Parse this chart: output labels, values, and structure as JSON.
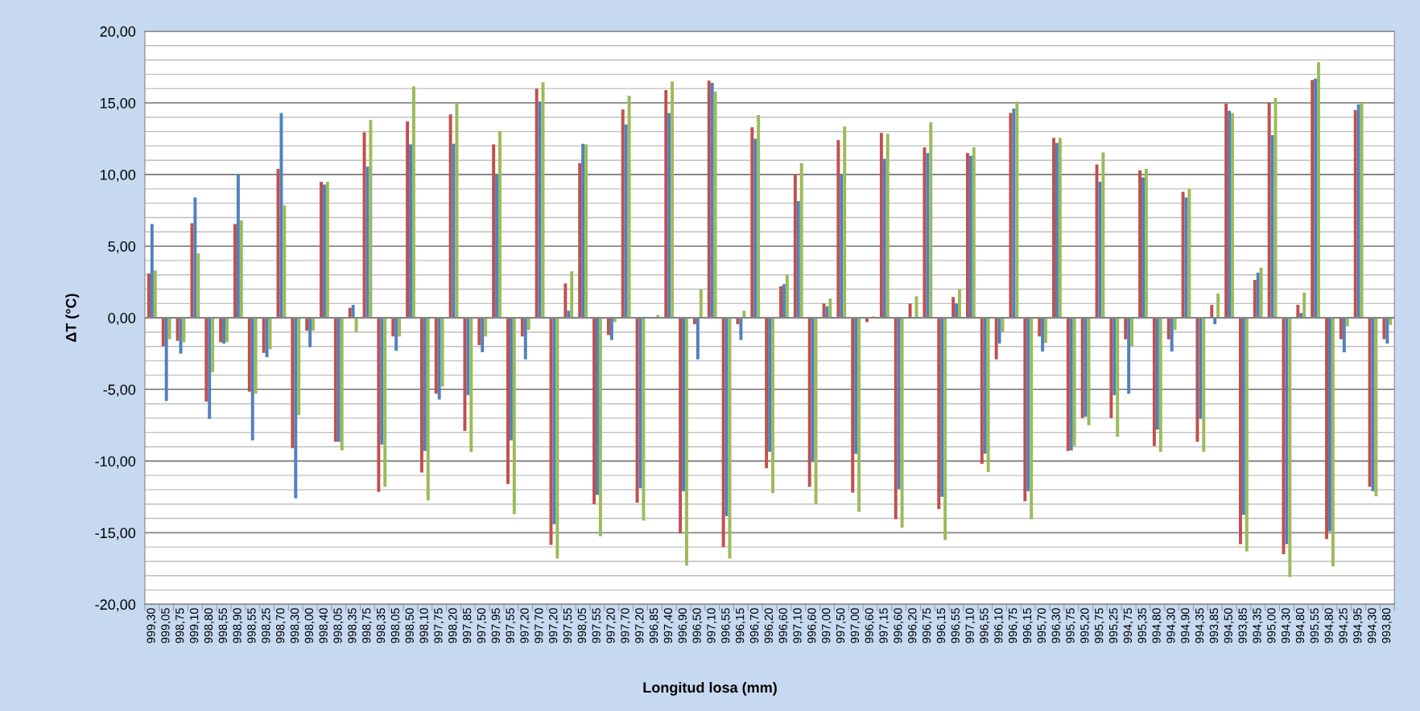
{
  "chart_data": {
    "type": "bar",
    "xlabel": "Longitud losa (mm)",
    "ylabel": "ΔT (°C)",
    "categories": [
      "999,30",
      "999,05",
      "998,75",
      "999,10",
      "998,80",
      "998,55",
      "998,90",
      "998,55",
      "998,25",
      "998,70",
      "998,30",
      "998,00",
      "998,40",
      "998,05",
      "998,35",
      "998,75",
      "998,35",
      "998,05",
      "998,50",
      "998,10",
      "997,75",
      "998,20",
      "997,85",
      "997,50",
      "997,95",
      "997,55",
      "997,20",
      "997,70",
      "997,20",
      "997,55",
      "998,05",
      "997,55",
      "997,20",
      "997,70",
      "997,20",
      "996,85",
      "997,40",
      "996,90",
      "996,50",
      "997,10",
      "996,55",
      "996,15",
      "996,70",
      "996,20",
      "996,60",
      "997,10",
      "996,60",
      "997,00",
      "997,50",
      "997,00",
      "996,60",
      "997,15",
      "996,60",
      "996,20",
      "996,75",
      "996,15",
      "996,55",
      "997,10",
      "996,55",
      "996,10",
      "996,75",
      "996,15",
      "995,70",
      "996,30",
      "995,75",
      "995,20",
      "995,75",
      "995,25",
      "994,75",
      "995,35",
      "994,80",
      "994,30",
      "994,90",
      "994,35",
      "993,85",
      "994,50",
      "993,85",
      "994,35",
      "995,00",
      "994,30",
      "994,80",
      "995,55",
      "994,80",
      "994,25",
      "994,95",
      "994,30",
      "993,80"
    ],
    "series": [
      {
        "color": "#c0504d",
        "values": [
          3.1,
          -2.0,
          -1.6,
          6.6,
          -5.85,
          -1.7,
          6.55,
          -5.15,
          -2.45,
          10.4,
          -9.1,
          -0.9,
          9.5,
          -8.65,
          0.7,
          12.95,
          -12.15,
          -1.3,
          13.7,
          -10.8,
          -5.3,
          14.2,
          -7.9,
          -1.9,
          12.1,
          -11.6,
          -1.3,
          16.0,
          -15.85,
          2.4,
          10.8,
          -13.0,
          -1.2,
          14.55,
          -12.9,
          0,
          15.9,
          -15.05,
          -0.45,
          16.55,
          -16.0,
          -0.45,
          13.3,
          -10.5,
          2.2,
          10.0,
          -11.8,
          1.0,
          12.4,
          -12.2,
          -0.3,
          12.9,
          -14.05,
          1.0,
          11.9,
          -13.35,
          1.45,
          11.5,
          -10.2,
          -2.9,
          14.3,
          -12.8,
          -1.3,
          12.55,
          -9.3,
          -7.0,
          10.7,
          -7.0,
          -1.5,
          10.3,
          -8.95,
          -1.5,
          8.8,
          -8.65,
          0.9,
          14.95,
          -15.8,
          2.65,
          15.0,
          -16.5,
          0.9,
          16.6,
          -15.45,
          -1.5,
          14.5,
          -11.8,
          -1.5
        ]
      },
      {
        "color": "#4f81bd",
        "values": [
          6.55,
          -5.8,
          -2.5,
          8.4,
          -7.05,
          -1.8,
          10.0,
          -8.55,
          -2.75,
          14.3,
          -12.6,
          -2.05,
          9.3,
          -8.65,
          0.9,
          10.55,
          -8.85,
          -2.3,
          12.1,
          -9.3,
          -5.7,
          12.15,
          -5.4,
          -2.4,
          10.0,
          -8.55,
          -2.9,
          15.1,
          -14.4,
          0.5,
          12.15,
          -12.35,
          -1.55,
          13.5,
          -11.9,
          0,
          14.3,
          -12.1,
          -2.9,
          16.4,
          -13.85,
          -1.55,
          12.5,
          -9.35,
          2.35,
          8.15,
          -10.05,
          0.8,
          10.0,
          -9.5,
          0,
          11.1,
          -11.95,
          0,
          11.5,
          -12.5,
          1.0,
          11.3,
          -9.5,
          -1.8,
          14.6,
          -12.1,
          -2.35,
          12.2,
          -9.25,
          -6.9,
          9.5,
          -5.4,
          -5.3,
          9.8,
          -7.8,
          -2.35,
          8.4,
          -7.05,
          -0.45,
          14.45,
          -13.75,
          3.15,
          12.75,
          -15.8,
          0.35,
          16.7,
          -14.9,
          -2.4,
          14.9,
          -12.1,
          -1.8
        ]
      },
      {
        "color": "#9bbb59",
        "values": [
          3.3,
          -1.5,
          -1.7,
          4.5,
          -3.8,
          -1.7,
          6.8,
          -5.3,
          -2.2,
          7.85,
          -6.8,
          -0.9,
          9.5,
          -9.25,
          -1.0,
          13.8,
          -11.8,
          -1.3,
          16.15,
          -12.75,
          -4.8,
          14.95,
          -9.35,
          -1.3,
          13.05,
          -13.7,
          -0.85,
          16.45,
          -16.8,
          3.25,
          12.1,
          -15.25,
          -0.3,
          15.5,
          -14.15,
          0.2,
          16.5,
          -17.3,
          2.0,
          15.8,
          -16.8,
          0.5,
          14.15,
          -12.25,
          3.0,
          10.8,
          -13.0,
          1.35,
          13.35,
          -13.55,
          0.1,
          12.85,
          -14.65,
          1.5,
          13.65,
          -15.5,
          2.0,
          11.9,
          -10.75,
          -1.0,
          15.1,
          -14.05,
          -1.75,
          12.55,
          -8.95,
          -7.5,
          11.55,
          -8.3,
          -2.0,
          10.4,
          -9.35,
          -0.85,
          9.0,
          -9.35,
          1.7,
          14.3,
          -16.3,
          3.5,
          15.35,
          -18.1,
          1.75,
          17.85,
          -17.35,
          -0.6,
          15.0,
          -12.45,
          -0.5
        ]
      }
    ],
    "ylim": [
      -20,
      20
    ],
    "yticks": [
      {
        "value": -20,
        "label": "-20,00"
      },
      {
        "value": -19,
        "label": null
      },
      {
        "value": -18,
        "label": null
      },
      {
        "value": -17,
        "label": null
      },
      {
        "value": -16,
        "label": null
      },
      {
        "value": -15,
        "label": "-15,00"
      },
      {
        "value": -14,
        "label": null
      },
      {
        "value": -13,
        "label": null
      },
      {
        "value": -12,
        "label": null
      },
      {
        "value": -11,
        "label": null
      },
      {
        "value": -10,
        "label": "-10,00"
      },
      {
        "value": -9,
        "label": null
      },
      {
        "value": -8,
        "label": null
      },
      {
        "value": -7,
        "label": null
      },
      {
        "value": -6,
        "label": null
      },
      {
        "value": -5,
        "label": "-5,00"
      },
      {
        "value": -4,
        "label": null
      },
      {
        "value": -3,
        "label": null
      },
      {
        "value": -2,
        "label": null
      },
      {
        "value": -1,
        "label": null
      },
      {
        "value": 0,
        "label": "0,00"
      },
      {
        "value": 1,
        "label": null
      },
      {
        "value": 2,
        "label": null
      },
      {
        "value": 3,
        "label": null
      },
      {
        "value": 4,
        "label": null
      },
      {
        "value": 5,
        "label": "5,00"
      },
      {
        "value": 6,
        "label": null
      },
      {
        "value": 7,
        "label": null
      },
      {
        "value": 8,
        "label": null
      },
      {
        "value": 9,
        "label": null
      },
      {
        "value": 10,
        "label": "10,00"
      },
      {
        "value": 11,
        "label": null
      },
      {
        "value": 12,
        "label": null
      },
      {
        "value": 13,
        "label": null
      },
      {
        "value": 14,
        "label": null
      },
      {
        "value": 15,
        "label": "15,00"
      },
      {
        "value": 16,
        "label": null
      },
      {
        "value": 17,
        "label": null
      },
      {
        "value": 18,
        "label": null
      },
      {
        "value": 19,
        "label": null
      },
      {
        "value": 20,
        "label": "20,00"
      }
    ],
    "grid": "y",
    "legend": false
  }
}
